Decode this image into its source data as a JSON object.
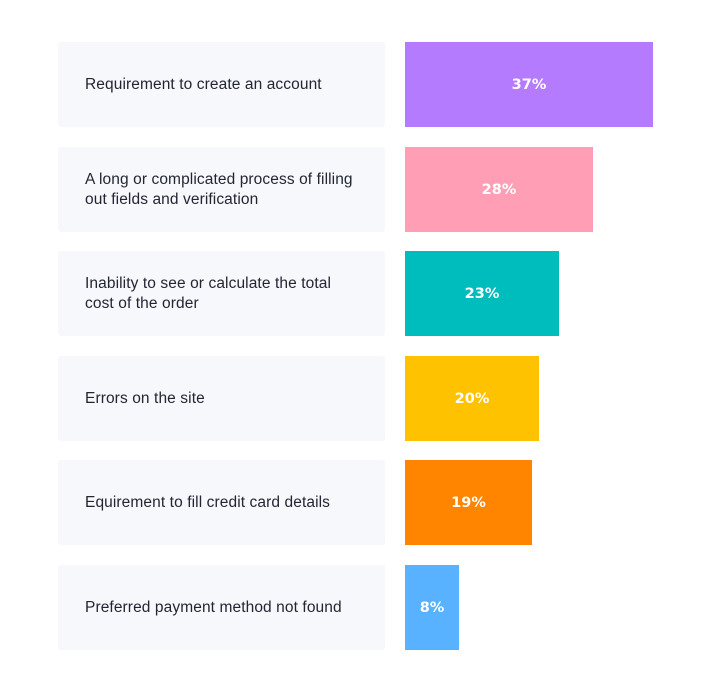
{
  "chart_data": {
    "type": "bar",
    "orientation": "horizontal",
    "categories": [
      "Requirement to create an account",
      "A long or complicated process of filling out fields and verification",
      "Inability to see or calculate the total cost of the order",
      "Errors on the site",
      "Equirement to fill credit card details",
      "Preferred payment method not found"
    ],
    "values": [
      37,
      28,
      23,
      20,
      19,
      8
    ],
    "value_labels": [
      "37%",
      "28%",
      "23%",
      "20%",
      "19%",
      "8%"
    ],
    "colors": [
      "#b57bff",
      "#ff9eb5",
      "#00bdbd",
      "#ffc200",
      "#ff8400",
      "#59b2ff"
    ],
    "unit": "%",
    "title": "",
    "xlabel": "",
    "ylabel": "",
    "xlim": [
      0,
      37
    ],
    "grid": false,
    "legend": "none"
  }
}
